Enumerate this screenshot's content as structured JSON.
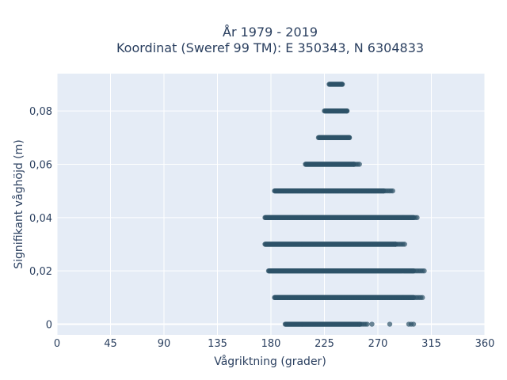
{
  "chart_data": {
    "type": "scatter",
    "title_line1": "År 1979 - 2019",
    "title_line2": "Koordinat (Sweref 99 TM): E 350343, N 6304833",
    "xlabel": "Vågriktning (grader)",
    "ylabel": "Signifikant våghöjd (m)",
    "xlim": [
      0,
      360
    ],
    "ylim": [
      -0.004,
      0.094
    ],
    "x_ticks": [
      0,
      45,
      90,
      135,
      180,
      225,
      270,
      315,
      360
    ],
    "x_tick_labels": [
      "0",
      "45",
      "90",
      "135",
      "180",
      "225",
      "270",
      "315",
      "360"
    ],
    "y_ticks": [
      0,
      0.02,
      0.04,
      0.06,
      0.08
    ],
    "y_tick_labels": [
      "0",
      "0,02",
      "0,04",
      "0,06",
      "0,08"
    ],
    "grid": true,
    "marker_color": "#2e5268",
    "plot_bg": "#e5ecf6",
    "rows": [
      {
        "y": 0.0,
        "x_min": 192,
        "x_max": 262,
        "dense_max": 255,
        "outliers": [
          265,
          280,
          296,
          298,
          300
        ]
      },
      {
        "y": 0.01,
        "x_min": 183,
        "x_max": 308,
        "dense_max": 300,
        "outliers": []
      },
      {
        "y": 0.02,
        "x_min": 178,
        "x_max": 310,
        "dense_max": 300,
        "outliers": []
      },
      {
        "y": 0.03,
        "x_min": 175,
        "x_max": 293,
        "dense_max": 285,
        "outliers": []
      },
      {
        "y": 0.04,
        "x_min": 175,
        "x_max": 304,
        "dense_max": 300,
        "outliers": []
      },
      {
        "y": 0.05,
        "x_min": 183,
        "x_max": 283,
        "dense_max": 275,
        "outliers": []
      },
      {
        "y": 0.06,
        "x_min": 209,
        "x_max": 255,
        "dense_max": 250,
        "outliers": []
      },
      {
        "y": 0.07,
        "x_min": 220,
        "x_max": 246,
        "dense_max": 246,
        "outliers": []
      },
      {
        "y": 0.08,
        "x_min": 225,
        "x_max": 244,
        "dense_max": 244,
        "outliers": []
      },
      {
        "y": 0.09,
        "x_min": 229,
        "x_max": 240,
        "dense_max": 240,
        "outliers": []
      }
    ]
  }
}
